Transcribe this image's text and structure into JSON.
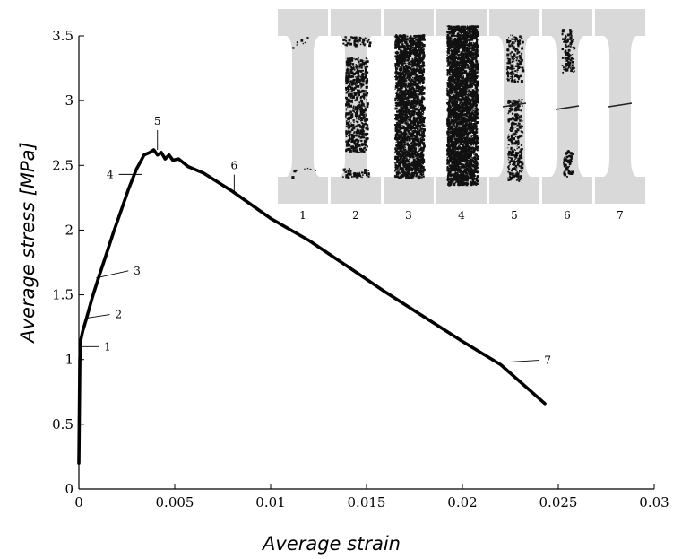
{
  "chart_data": {
    "type": "line",
    "title": "",
    "xlabel": "Average strain",
    "ylabel": "Average stress [MPa]",
    "xlim": [
      0,
      0.03
    ],
    "ylim": [
      0,
      3.5
    ],
    "x_ticks": [
      0,
      0.005,
      0.01,
      0.015,
      0.02,
      0.025,
      0.03
    ],
    "x_tick_labels": [
      "0",
      "0.005",
      "0.01",
      "0.015",
      "0.02",
      "0.025",
      "0.03"
    ],
    "y_ticks": [
      0,
      0.5,
      1,
      1.5,
      2,
      2.5,
      3,
      3.5
    ],
    "y_tick_labels": [
      "0",
      "0.5",
      "1",
      "1.5",
      "2",
      "2.5",
      "3",
      "3.5"
    ],
    "grid": false,
    "legend": "none",
    "series": [
      {
        "color": "#000000",
        "x": [
          0,
          5e-05,
          0.0001,
          0.0002,
          0.0004,
          0.0007,
          0.001,
          0.0014,
          0.0018,
          0.0022,
          0.0026,
          0.003,
          0.0034,
          0.0037,
          0.0039,
          0.0041,
          0.0043,
          0.0045,
          0.0047,
          0.0049,
          0.0052,
          0.0057,
          0.0065,
          0.008,
          0.01,
          0.012,
          0.014,
          0.016,
          0.018,
          0.02,
          0.022,
          0.0243
        ],
        "y": [
          0.2,
          1.0,
          1.15,
          1.22,
          1.32,
          1.48,
          1.62,
          1.8,
          1.98,
          2.15,
          2.32,
          2.47,
          2.58,
          2.6,
          2.62,
          2.58,
          2.6,
          2.55,
          2.58,
          2.54,
          2.55,
          2.49,
          2.44,
          2.3,
          2.09,
          1.92,
          1.72,
          1.52,
          1.33,
          1.14,
          0.96,
          0.66
        ]
      }
    ],
    "annotations": [
      {
        "label": "1",
        "x": 0.0001,
        "y": 1.1
      },
      {
        "label": "2",
        "x": 0.0004,
        "y": 1.32
      },
      {
        "label": "3",
        "x": 0.0009,
        "y": 1.63
      },
      {
        "label": "4",
        "x": 0.0033,
        "y": 2.43
      },
      {
        "label": "5",
        "x": 0.0041,
        "y": 2.62
      },
      {
        "label": "6",
        "x": 0.0081,
        "y": 2.29
      },
      {
        "label": "7",
        "x": 0.0224,
        "y": 0.98
      }
    ],
    "inset": {
      "labels": [
        "1",
        "2",
        "3",
        "4",
        "5",
        "6",
        "7"
      ],
      "fill_color": "#d9d9d9",
      "damage_color": "#111111"
    }
  }
}
